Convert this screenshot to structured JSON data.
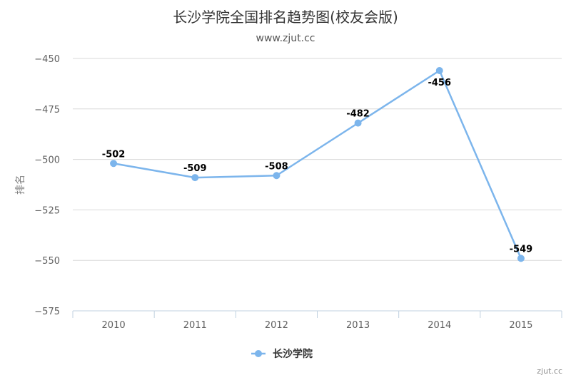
{
  "chart_data": {
    "type": "line",
    "title": "长沙学院全国排名趋势图(校友会版)",
    "subtitle": "www.zjut.cc",
    "categories": [
      "2010",
      "2011",
      "2012",
      "2013",
      "2014",
      "2015"
    ],
    "series": [
      {
        "name": "长沙学院",
        "values": [
          -502,
          -509,
          -508,
          -482,
          -456,
          -549
        ]
      }
    ],
    "data_labels": [
      "-502",
      "-509",
      "-508",
      "-482",
      "-456",
      "-549"
    ],
    "ylabel": "排名",
    "xlabel": "",
    "ylim": [
      -575,
      -450
    ],
    "yticks": [
      -450,
      -475,
      -500,
      -525,
      -550,
      -575
    ],
    "ytick_labels": [
      "−450",
      "−475",
      "−500",
      "−525",
      "−550",
      "−575"
    ],
    "grid": true,
    "legend": "bottom-center",
    "color": "#7cb5ec"
  },
  "credit": "zjut.cc"
}
